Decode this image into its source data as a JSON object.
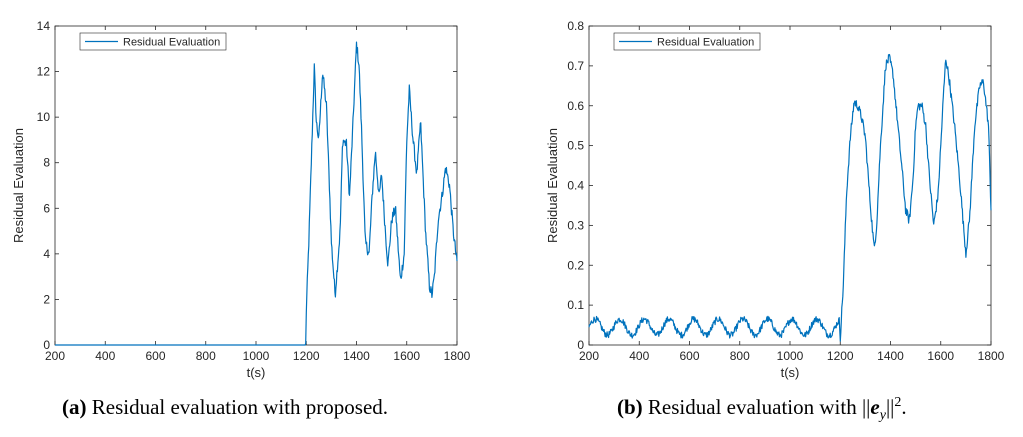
{
  "chart_data": [
    {
      "type": "line",
      "panel": "a",
      "xlabel": "t(s)",
      "ylabel": "Residual Evaluation",
      "xlim": [
        200,
        1800
      ],
      "ylim": [
        0,
        14
      ],
      "xticks": [
        200,
        400,
        600,
        800,
        1000,
        1200,
        1400,
        1600,
        1800
      ],
      "yticks": [
        0,
        2,
        4,
        6,
        8,
        10,
        12,
        14
      ],
      "legend_position": "top-left",
      "series": [
        {
          "name": "Residual Evaluation",
          "color": "#0072BD",
          "x": [
            200,
            1198,
            1200,
            1210,
            1220,
            1232,
            1240,
            1250,
            1265,
            1280,
            1292,
            1300,
            1315,
            1335,
            1345,
            1360,
            1372,
            1385,
            1400,
            1410,
            1420,
            1435,
            1450,
            1462,
            1475,
            1490,
            1500,
            1512,
            1525,
            1540,
            1555,
            1575,
            1590,
            1600,
            1610,
            1625,
            1640,
            1655,
            1675,
            1690,
            1700,
            1710,
            1725,
            1740,
            1755,
            1770,
            1785,
            1800
          ],
          "y": [
            0,
            0,
            1.5,
            4.5,
            8.0,
            12.2,
            9.8,
            9.0,
            12.0,
            10.5,
            7.0,
            4.5,
            2.2,
            5.0,
            9.0,
            8.8,
            6.5,
            9.5,
            13.2,
            12.3,
            9.5,
            4.5,
            4.0,
            6.5,
            8.5,
            6.5,
            7.5,
            5.5,
            3.5,
            5.5,
            6.0,
            2.8,
            4.0,
            9.0,
            11.2,
            9.0,
            7.5,
            9.8,
            5.0,
            2.6,
            2.2,
            3.0,
            5.5,
            6.5,
            7.8,
            7.0,
            5.0,
            3.6
          ]
        }
      ]
    },
    {
      "type": "line",
      "panel": "b",
      "xlabel": "t(s)",
      "ylabel": "Residual Evaluation",
      "xlim": [
        200,
        1800
      ],
      "ylim": [
        0,
        0.8
      ],
      "xticks": [
        200,
        400,
        600,
        800,
        1000,
        1200,
        1400,
        1600,
        1800
      ],
      "yticks": [
        0,
        0.1,
        0.2,
        0.3,
        0.4,
        0.5,
        0.6,
        0.7,
        0.8
      ],
      "legend_position": "top-left",
      "series": [
        {
          "name": "Residual Evaluation",
          "color": "#0072BD",
          "x": [
            200,
            1198,
            1200,
            1212,
            1225,
            1240,
            1255,
            1270,
            1285,
            1300,
            1320,
            1335,
            1345,
            1360,
            1380,
            1395,
            1410,
            1425,
            1440,
            1460,
            1475,
            1490,
            1500,
            1510,
            1525,
            1540,
            1555,
            1572,
            1590,
            1610,
            1620,
            1635,
            1655,
            1675,
            1690,
            1700,
            1715,
            1735,
            1755,
            1770,
            1790,
            1800
          ],
          "y": [
            0.045,
            0.045,
            0.02,
            0.15,
            0.38,
            0.52,
            0.61,
            0.6,
            0.57,
            0.52,
            0.35,
            0.24,
            0.3,
            0.5,
            0.7,
            0.72,
            0.68,
            0.58,
            0.48,
            0.34,
            0.31,
            0.42,
            0.55,
            0.6,
            0.6,
            0.55,
            0.42,
            0.3,
            0.38,
            0.62,
            0.72,
            0.66,
            0.55,
            0.42,
            0.3,
            0.23,
            0.32,
            0.55,
            0.65,
            0.66,
            0.55,
            0.34
          ]
        }
      ]
    }
  ],
  "captions": [
    {
      "label": "(a)",
      "text": "Residual evaluation with proposed."
    },
    {
      "label": "(b)",
      "text": "Residual evaluation with ",
      "math_e": "e",
      "math_sub": "y",
      "math_sup": "2",
      "tail": "."
    }
  ]
}
